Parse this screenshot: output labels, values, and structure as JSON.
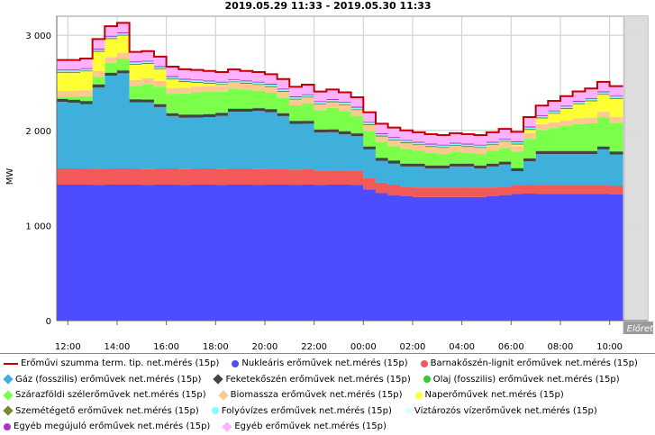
{
  "chart_data": {
    "type": "area",
    "title": "2019.05.29 11:33 - 2019.05.30 11:33",
    "ylabel": "MW",
    "xlabel": "",
    "ylim": [
      0,
      3200
    ],
    "yticks": [
      {
        "value": 0,
        "label": "0"
      },
      {
        "value": 1000,
        "label": "1 000"
      },
      {
        "value": 2000,
        "label": "2 000"
      },
      {
        "value": 3000,
        "label": "3 000"
      }
    ],
    "xticks": [
      {
        "hour": 12,
        "label": "12:00"
      },
      {
        "hour": 14,
        "label": "14:00"
      },
      {
        "hour": 16,
        "label": "16:00"
      },
      {
        "hour": 18,
        "label": "18:00"
      },
      {
        "hour": 20,
        "label": "20:00"
      },
      {
        "hour": 22,
        "label": "22:00"
      },
      {
        "hour": 24,
        "label": "00:00"
      },
      {
        "hour": 26,
        "label": "02:00"
      },
      {
        "hour": 28,
        "label": "04:00"
      },
      {
        "hour": 30,
        "label": "06:00"
      },
      {
        "hour": 32,
        "label": "08:00"
      },
      {
        "hour": 34,
        "label": "10:00"
      }
    ],
    "x_start_hour": 11.55,
    "x_end_hour": 35.55,
    "forecast_start_hour": 34.55,
    "forecast_label": "Előret",
    "grid": true,
    "time_hours": [
      11.55,
      12,
      12.5,
      13,
      13.5,
      14,
      14.5,
      15,
      15.5,
      16,
      16.5,
      17,
      17.5,
      18,
      18.5,
      19,
      19.5,
      20,
      20.5,
      21,
      21.5,
      22,
      22.5,
      23,
      23.5,
      24,
      24.5,
      25,
      25.5,
      26,
      26.5,
      27,
      27.5,
      28,
      28.5,
      29,
      29.5,
      30,
      30.5,
      31,
      31.5,
      32,
      32.5,
      33,
      33.5,
      34,
      34.5
    ],
    "series": [
      {
        "name": "Nukleáris erőművek net.mérés (15p)",
        "color": "#4d4dff",
        "values": [
          1430,
          1430,
          1430,
          1425,
          1430,
          1430,
          1430,
          1428,
          1430,
          1430,
          1428,
          1430,
          1430,
          1428,
          1430,
          1430,
          1428,
          1430,
          1430,
          1428,
          1430,
          1428,
          1430,
          1430,
          1428,
          1380,
          1340,
          1320,
          1310,
          1300,
          1300,
          1300,
          1300,
          1300,
          1300,
          1310,
          1320,
          1330,
          1335,
          1330,
          1330,
          1330,
          1330,
          1330,
          1330,
          1325,
          1325
        ]
      },
      {
        "name": "Barnakőszén-lignit erőművek net.mérés (15p)",
        "color": "#f25a5a",
        "values": [
          170,
          170,
          165,
          165,
          165,
          170,
          165,
          165,
          165,
          170,
          165,
          165,
          170,
          165,
          165,
          165,
          165,
          160,
          160,
          160,
          160,
          150,
          150,
          150,
          150,
          120,
          110,
          110,
          100,
          100,
          100,
          100,
          100,
          100,
          100,
          90,
          90,
          90,
          90,
          90,
          90,
          90,
          90,
          90,
          90,
          90,
          90
        ]
      },
      {
        "name": "Gáz (fosszilis) erőművek net.mérés (15p)",
        "color": "#3fb0dc",
        "values": [
          700,
          690,
          680,
          860,
          980,
          1000,
          700,
          700,
          650,
          550,
          540,
          540,
          540,
          560,
          600,
          600,
          610,
          600,
          560,
          480,
          480,
          400,
          400,
          380,
          360,
          300,
          230,
          220,
          210,
          220,
          200,
          200,
          220,
          220,
          200,
          220,
          230,
          150,
          250,
          330,
          330,
          330,
          330,
          330,
          380,
          330,
          330
        ]
      },
      {
        "name": "Feketekőszén erőművek net.mérés (15p)",
        "color": "#444444",
        "values": [
          30,
          30,
          30,
          30,
          30,
          30,
          30,
          30,
          30,
          30,
          30,
          30,
          30,
          30,
          30,
          30,
          30,
          30,
          30,
          30,
          30,
          30,
          30,
          30,
          30,
          30,
          30,
          30,
          30,
          30,
          30,
          30,
          30,
          30,
          30,
          30,
          30,
          30,
          30,
          30,
          30,
          30,
          30,
          30,
          30,
          30,
          30
        ]
      },
      {
        "name": "Olaj (fosszilis) erőművek net.mérés (15p)",
        "color": "#33cc33",
        "values": [
          5,
          5,
          5,
          5,
          5,
          5,
          5,
          5,
          5,
          5,
          5,
          5,
          5,
          5,
          5,
          5,
          5,
          5,
          5,
          5,
          5,
          5,
          5,
          5,
          5,
          5,
          5,
          5,
          5,
          5,
          5,
          5,
          5,
          5,
          5,
          5,
          5,
          5,
          5,
          5,
          5,
          5,
          5,
          5,
          5,
          5,
          5
        ]
      },
      {
        "name": "Szárazföldi szélerőművek net.mérés (15p)",
        "color": "#7cff4a",
        "values": [
          20,
          30,
          50,
          80,
          100,
          120,
          140,
          160,
          180,
          200,
          220,
          230,
          230,
          220,
          210,
          200,
          180,
          170,
          160,
          160,
          180,
          200,
          220,
          210,
          180,
          160,
          160,
          150,
          150,
          130,
          130,
          120,
          120,
          110,
          120,
          130,
          140,
          170,
          200,
          220,
          240,
          260,
          280,
          290,
          300,
          300,
          300
        ]
      },
      {
        "name": "Biomassza erőművek net.mérés (15p)",
        "color": "#ffc890",
        "values": [
          60,
          60,
          60,
          60,
          60,
          60,
          60,
          60,
          60,
          60,
          60,
          60,
          60,
          60,
          60,
          60,
          60,
          60,
          60,
          60,
          60,
          60,
          60,
          60,
          60,
          60,
          60,
          60,
          60,
          60,
          60,
          60,
          60,
          60,
          60,
          60,
          60,
          60,
          60,
          60,
          60,
          60,
          60,
          60,
          60,
          60,
          60
        ]
      },
      {
        "name": "Naperőművek net.mérés (15p)",
        "color": "#ffff33",
        "values": [
          190,
          190,
          200,
          200,
          190,
          180,
          160,
          150,
          120,
          90,
          60,
          40,
          25,
          10,
          5,
          0,
          0,
          0,
          0,
          0,
          0,
          0,
          0,
          0,
          0,
          0,
          0,
          0,
          0,
          0,
          0,
          0,
          0,
          0,
          0,
          0,
          5,
          15,
          35,
          60,
          90,
          120,
          150,
          170,
          180,
          190,
          190
        ]
      },
      {
        "name": "Szemétégető erőművek net.mérés (15p)",
        "color": "#778833",
        "values": [
          10,
          10,
          10,
          10,
          10,
          10,
          10,
          10,
          10,
          10,
          10,
          10,
          10,
          10,
          10,
          10,
          10,
          10,
          10,
          10,
          10,
          10,
          10,
          10,
          10,
          10,
          10,
          10,
          10,
          10,
          10,
          10,
          10,
          10,
          10,
          10,
          10,
          10,
          10,
          10,
          10,
          10,
          10,
          10,
          10,
          10,
          10
        ]
      },
      {
        "name": "Folyóvízes erőművek net.mérés (15p)",
        "color": "#7fffff",
        "values": [
          15,
          15,
          15,
          15,
          15,
          15,
          15,
          15,
          15,
          15,
          15,
          15,
          15,
          15,
          15,
          15,
          15,
          15,
          15,
          15,
          15,
          15,
          15,
          15,
          15,
          15,
          15,
          15,
          15,
          15,
          15,
          15,
          15,
          15,
          15,
          15,
          15,
          15,
          15,
          15,
          15,
          15,
          15,
          15,
          15,
          15,
          15
        ]
      },
      {
        "name": "Víztározós vízerőművek net.mérés (15p)",
        "color": "#ddffff",
        "values": [
          0,
          0,
          0,
          0,
          0,
          0,
          0,
          0,
          0,
          0,
          0,
          0,
          0,
          0,
          0,
          0,
          0,
          0,
          0,
          0,
          0,
          0,
          0,
          0,
          0,
          0,
          0,
          0,
          0,
          0,
          0,
          0,
          0,
          0,
          0,
          0,
          0,
          0,
          0,
          0,
          0,
          0,
          0,
          0,
          0,
          0,
          0
        ]
      },
      {
        "name": "Egyéb megújuló erőművek net.mérés (15p)",
        "color": "#aa33cc",
        "values": [
          10,
          10,
          10,
          10,
          10,
          10,
          10,
          10,
          10,
          10,
          10,
          10,
          10,
          10,
          10,
          10,
          10,
          10,
          10,
          10,
          10,
          10,
          10,
          10,
          10,
          10,
          10,
          10,
          10,
          10,
          10,
          10,
          10,
          10,
          10,
          10,
          10,
          10,
          10,
          10,
          10,
          10,
          10,
          10,
          10,
          10,
          10
        ]
      },
      {
        "name": "Egyéb erőművek net.mérés (15p)",
        "color": "#ffb0ff",
        "values": [
          100,
          100,
          100,
          100,
          100,
          100,
          100,
          100,
          100,
          100,
          100,
          100,
          100,
          100,
          100,
          100,
          100,
          100,
          100,
          100,
          100,
          100,
          100,
          100,
          100,
          100,
          100,
          100,
          100,
          100,
          100,
          100,
          100,
          100,
          100,
          100,
          100,
          100,
          100,
          100,
          100,
          100,
          100,
          100,
          100,
          100,
          100
        ]
      }
    ],
    "total_series": {
      "name": "Erőműv szumma term. tip. net.mérés (15p)",
      "color": "#c00000"
    }
  },
  "legend": {
    "rows": [
      [
        {
          "label": "Erőművi szumma term. tip. net.mérés (15p)",
          "shape": "line",
          "color": "#c00000"
        },
        {
          "label": "Nukleáris erőművek net.mérés (15p)",
          "shape": "circle",
          "color": "#4d4dff"
        },
        {
          "label": "Barnakőszén-lignit erőművek net.mérés (15p)",
          "shape": "circle",
          "color": "#f25a5a"
        }
      ],
      [
        {
          "label": "Gáz (fosszilis) erőművek net.mérés (15p)",
          "shape": "rect",
          "color": "#3fb0dc"
        },
        {
          "label": "Feketekőszén erőművek net.mérés (15p)",
          "shape": "rect",
          "color": "#444444"
        },
        {
          "label": "Olaj (fosszilis) erőművek net.mérés (15p)",
          "shape": "circle",
          "color": "#33cc33"
        }
      ],
      [
        {
          "label": "Szárazföldi szélerőművek net.mérés (15p)",
          "shape": "rect",
          "color": "#7cff4a"
        },
        {
          "label": "Biomassza erőművek net.mérés (15p)",
          "shape": "rect",
          "color": "#ffc890"
        },
        {
          "label": "Naperőművek net.mérés (15p)",
          "shape": "circle",
          "color": "#ffff33"
        }
      ],
      [
        {
          "label": "Szemétégető erőművek net.mérés (15p)",
          "shape": "rect",
          "color": "#778833"
        },
        {
          "label": "Folyóvízes erőművek net.mérés (15p)",
          "shape": "circle",
          "color": "#7fffff"
        },
        {
          "label": "Víztározós vízerőművek net.mérés (15p)",
          "shape": "circle",
          "color": "#ddffff"
        }
      ],
      [
        {
          "label": "Egyéb megújuló erőművek net.mérés (15p)",
          "shape": "circle",
          "color": "#aa33cc"
        },
        {
          "label": "Egyéb erőművek net.mérés (15p)",
          "shape": "rect",
          "color": "#ffb0ff"
        }
      ]
    ]
  }
}
